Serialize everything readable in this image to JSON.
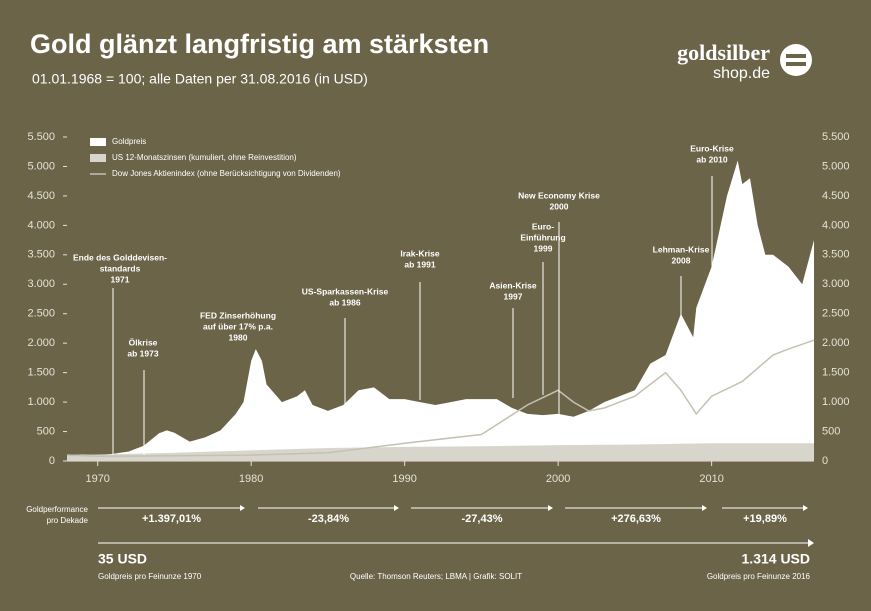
{
  "header": {
    "title": "Gold glänzt langfristig am stärksten",
    "subtitle": "01.01.1968 = 100; alle Daten per 31.08.2016 (in USD)",
    "logo_top": "goldsilber",
    "logo_bottom": "shop.de"
  },
  "chart_data": {
    "type": "area",
    "xlim": [
      1968,
      2016.67
    ],
    "xticks": [
      1970,
      1980,
      1990,
      2000,
      2010
    ],
    "ylim": [
      0,
      5500
    ],
    "yticks": [
      0,
      {
        "value": 500,
        "label": "500"
      },
      {
        "value": 1000,
        "label": "1.000"
      },
      {
        "value": 1500,
        "label": "1.500"
      },
      {
        "value": 2000,
        "label": "2.000"
      },
      {
        "value": 2500,
        "label": "2.500"
      },
      {
        "value": 3000,
        "label": "3.000"
      },
      {
        "value": 3500,
        "label": "3.500"
      },
      {
        "value": 4000,
        "label": "4.000"
      },
      {
        "value": 4500,
        "label": "4.500"
      },
      {
        "value": 5000,
        "label": "5.000"
      },
      {
        "value": 5500,
        "label": "5.500"
      }
    ],
    "series": [
      {
        "name": "Goldpreis",
        "color": "#ffffff",
        "kind": "area",
        "x": [
          1968,
          1969,
          1970,
          1971,
          1972,
          1973,
          1974,
          1974.5,
          1975,
          1976,
          1977,
          1978,
          1979,
          1979.5,
          1980,
          1980.3,
          1980.7,
          1981,
          1982,
          1983,
          1983.5,
          1984,
          1985,
          1986,
          1987,
          1988,
          1989,
          1990,
          1991,
          1992,
          1993,
          1994,
          1995,
          1996,
          1997,
          1998,
          1999,
          2000,
          2001,
          2002,
          2003,
          2004,
          2005,
          2006,
          2007,
          2008,
          2008.8,
          2009,
          2010,
          2011,
          2011.7,
          2012,
          2012.5,
          2013,
          2013.5,
          2014,
          2015,
          2015.9,
          2016.67
        ],
        "values": [
          100,
          110,
          100,
          120,
          160,
          260,
          470,
          520,
          480,
          330,
          400,
          520,
          800,
          1000,
          1700,
          1900,
          1700,
          1300,
          1000,
          1100,
          1200,
          950,
          850,
          950,
          1200,
          1250,
          1050,
          1050,
          1000,
          950,
          1000,
          1050,
          1050,
          1050,
          900,
          800,
          780,
          800,
          750,
          850,
          1000,
          1100,
          1200,
          1650,
          1800,
          2500,
          2100,
          2600,
          3300,
          4500,
          5100,
          4700,
          4800,
          4000,
          3500,
          3500,
          3300,
          3000,
          3750
        ]
      },
      {
        "name": "US 12-Monatszinsen (kumuliert, ohne Reinvestition)",
        "color": "#d8d6cc",
        "kind": "area",
        "x": [
          1968,
          1970,
          1975,
          1980,
          1985,
          1990,
          1995,
          2000,
          2005,
          2010,
          2016.67
        ],
        "values": [
          100,
          110,
          140,
          180,
          220,
          240,
          250,
          270,
          280,
          300,
          300
        ]
      },
      {
        "name": "Dow Jones Aktienindex (ohne Berücksichtigung von Dividenden)",
        "color": "#c4c1b2",
        "kind": "line",
        "x": [
          1968,
          1970,
          1975,
          1980,
          1985,
          1990,
          1995,
          1998,
          2000,
          2001,
          2002,
          2003,
          2005,
          2007,
          2008,
          2009,
          2010,
          2012,
          2014,
          2015,
          2016.67
        ],
        "values": [
          100,
          80,
          90,
          100,
          140,
          300,
          450,
          950,
          1200,
          1000,
          850,
          900,
          1100,
          1500,
          1200,
          800,
          1100,
          1350,
          1800,
          1900,
          2050
        ]
      }
    ],
    "annotations": [
      [
        "Ende des Golddevisen-",
        "standards",
        "1971"
      ],
      [
        "Ölkrise",
        "ab 1973"
      ],
      [
        "FED Zinserhöhung",
        "auf über 17% p.a.",
        "1980"
      ],
      [
        "US-Sparkassen-Krise",
        "ab 1986"
      ],
      [
        "Irak-Krise",
        "ab 1991"
      ],
      [
        "Asien-Krise",
        "1997"
      ],
      [
        "New Economy Krise",
        "2000"
      ],
      [
        "Euro-",
        "Einführung",
        "1999"
      ],
      [
        "Lehman-Krise",
        "2008"
      ],
      [
        "Euro-Krise",
        "ab 2010"
      ]
    ],
    "performance_label": [
      "Goldperformance",
      "pro Dekade"
    ],
    "performance": [
      "+1.397,01%",
      "-23,84%",
      "-27,43%",
      "+276,63%",
      "+19,89%"
    ],
    "start_value": "35 USD",
    "start_note": "Goldpreis pro Feinunze 1970",
    "end_value": "1.314 USD",
    "end_note": "Goldpreis pro Feinunze 2016",
    "source": "Quelle: Thomson Reuters; LBMA | Grafik: SOLIT"
  }
}
